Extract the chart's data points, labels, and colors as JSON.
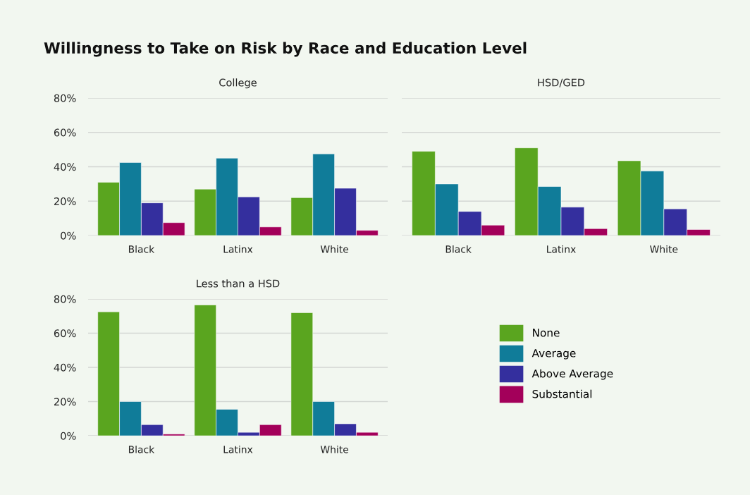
{
  "chart_data": [
    {
      "type": "bar",
      "title": "Willingness to Take on Risk by Race and Education Level",
      "subtitle": "College",
      "categories": [
        "Black",
        "Latinx",
        "White"
      ],
      "ylim": [
        0,
        80
      ],
      "yticks": [
        {
          "value": 0,
          "label": "0%"
        },
        {
          "value": 20,
          "label": "20%"
        },
        {
          "value": 40,
          "label": "40%"
        },
        {
          "value": 60,
          "label": "60%"
        },
        {
          "value": 80,
          "label": "80%"
        }
      ],
      "grid": "y",
      "series": [
        {
          "color": "#5aa51f",
          "values": [
            31,
            27,
            22
          ]
        },
        {
          "color": "#107c99",
          "values": [
            42.5,
            45,
            47.5
          ]
        },
        {
          "color": "#342f9e",
          "values": [
            19,
            22.5,
            27.5
          ]
        },
        {
          "color": "#a3005a",
          "values": [
            7.5,
            5,
            3
          ]
        }
      ]
    },
    {
      "type": "bar",
      "title": "HSD/GED",
      "categories": [
        "Black",
        "Latinx",
        "White"
      ],
      "ylim": [
        0,
        80
      ],
      "yticks": [
        0,
        20,
        40,
        60,
        80
      ],
      "grid": "y",
      "tick_labels": "x",
      "series": [
        {
          "color": "#5aa51f",
          "values": [
            49,
            51,
            43.5
          ]
        },
        {
          "color": "#107c99",
          "values": [
            30,
            28.5,
            37.5
          ]
        },
        {
          "color": "#342f9e",
          "values": [
            14,
            16.5,
            15.5
          ]
        },
        {
          "color": "#a3005a",
          "values": [
            6,
            4,
            3.5
          ]
        }
      ]
    },
    {
      "type": "bar",
      "title": "Less than a HSD",
      "categories": [
        "Black",
        "Latinx",
        "White"
      ],
      "ylim": [
        0,
        80
      ],
      "yticks": [
        {
          "value": 0,
          "label": "0%"
        },
        {
          "value": 20,
          "label": "20%"
        },
        {
          "value": 40,
          "label": "40%"
        },
        {
          "value": 60,
          "label": "60%"
        },
        {
          "value": 80,
          "label": "80%"
        }
      ],
      "grid": "y",
      "legend": "right",
      "series": [
        {
          "name": "None",
          "color": "#5aa51f",
          "values": [
            72.5,
            76.5,
            72
          ]
        },
        {
          "name": "Average",
          "color": "#107c99",
          "values": [
            20,
            15.5,
            20
          ]
        },
        {
          "name": "Above Average",
          "color": "#342f9e",
          "values": [
            6.5,
            2,
            7
          ]
        },
        {
          "name": "Substantial",
          "color": "#a3005a",
          "values": [
            1,
            6.5,
            2
          ]
        }
      ]
    }
  ]
}
